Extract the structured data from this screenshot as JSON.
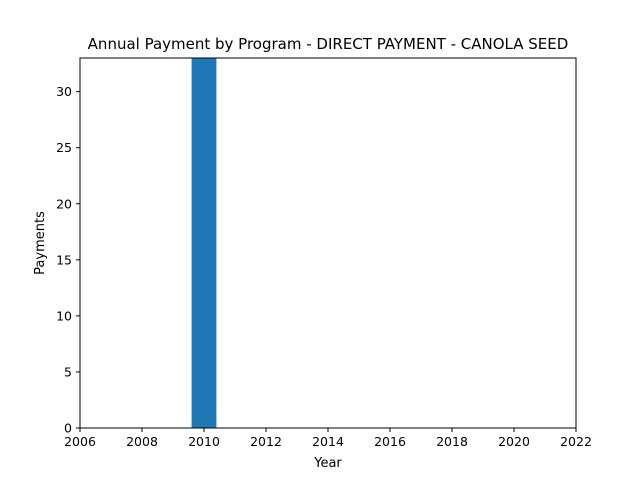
{
  "chart_data": {
    "type": "bar",
    "title": "Annual Payment by Program - DIRECT PAYMENT - CANOLA SEED",
    "xlabel": "Year",
    "ylabel": "Payments",
    "x": [
      2010
    ],
    "values": [
      33
    ],
    "bar_color": "#1f77b4",
    "xlim": [
      2006,
      2022
    ],
    "ylim": [
      0,
      33
    ],
    "xticks": [
      2006,
      2008,
      2010,
      2012,
      2014,
      2016,
      2018,
      2020,
      2022
    ],
    "yticks": [
      0,
      5,
      10,
      15,
      20,
      25,
      30
    ],
    "grid": false,
    "legend": "none"
  }
}
